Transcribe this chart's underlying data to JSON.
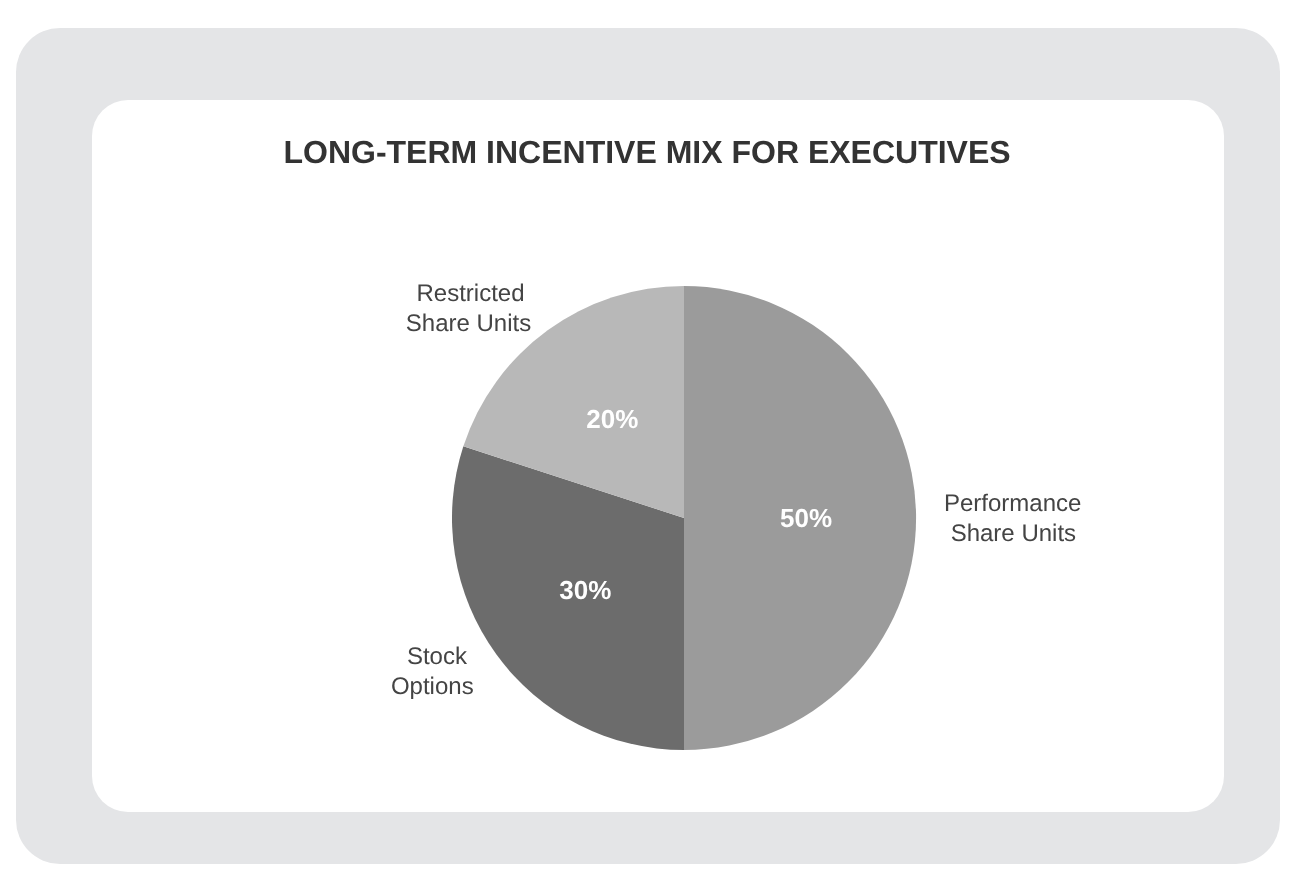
{
  "chart_data": {
    "type": "pie",
    "title": "LONG-TERM INCENTIVE MIX FOR EXECUTIVES",
    "categories": [
      "Performance Share Units",
      "Stock Options",
      "Restricted Share Units"
    ],
    "values": [
      50,
      30,
      20
    ],
    "colors": [
      "#9b9b9b",
      "#6c6c6c",
      "#b8b8b8"
    ],
    "value_labels": [
      "50%",
      "30%",
      "20%"
    ],
    "legend": false
  }
}
